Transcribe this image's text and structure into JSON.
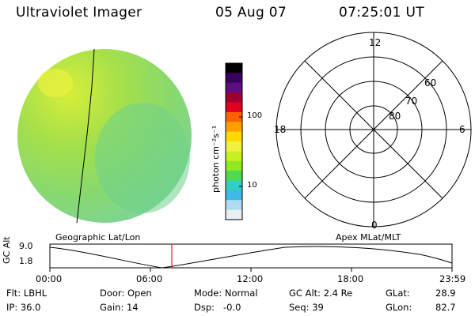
{
  "header": {
    "instrument": "Ultraviolet Imager",
    "date": "05 Aug 07",
    "time": "07:25:01 UT"
  },
  "colorbar": {
    "unit": "photon cm⁻²s⁻¹",
    "ticks": [
      "100",
      "10"
    ],
    "colors": [
      "#000000",
      "#3a0060",
      "#5a1080",
      "#a00030",
      "#e00020",
      "#ff6000",
      "#ffa000",
      "#ffd800",
      "#f0f040",
      "#c8f020",
      "#90e820",
      "#50d850",
      "#30d0c0",
      "#40b8e8",
      "#b0dcf0",
      "#e8eef2"
    ]
  },
  "polar_plot": {
    "mlt_labels": [
      "12",
      "18",
      "6",
      "0"
    ],
    "mlat_labels": [
      "60",
      "70",
      "80"
    ]
  },
  "coords": {
    "left": "Geographic Lat/Lon",
    "right": "Apex MLat/MLT"
  },
  "altitude_strip": {
    "ylabel": "GC Alt",
    "y_ticks": [
      "9.0",
      "1.8"
    ],
    "x_ticks": [
      "00:00",
      "06:00",
      "12:00",
      "18:00",
      "23:59"
    ],
    "marker_color": "#cc0000"
  },
  "status": {
    "flt": "Flt: LBHL",
    "ip": "IP: 36.0",
    "door": "Door: Open",
    "gain": "Gain: 14",
    "mode": "Mode: Normal",
    "dsp": "Dsp:   -0.0",
    "gc_alt": "GC Alt: 2.4 Re",
    "seq": "Seq: 39",
    "glat_label": "GLat:",
    "glat_value": "28.9",
    "glon_label": "GLon:",
    "glon_value": "82.7"
  }
}
